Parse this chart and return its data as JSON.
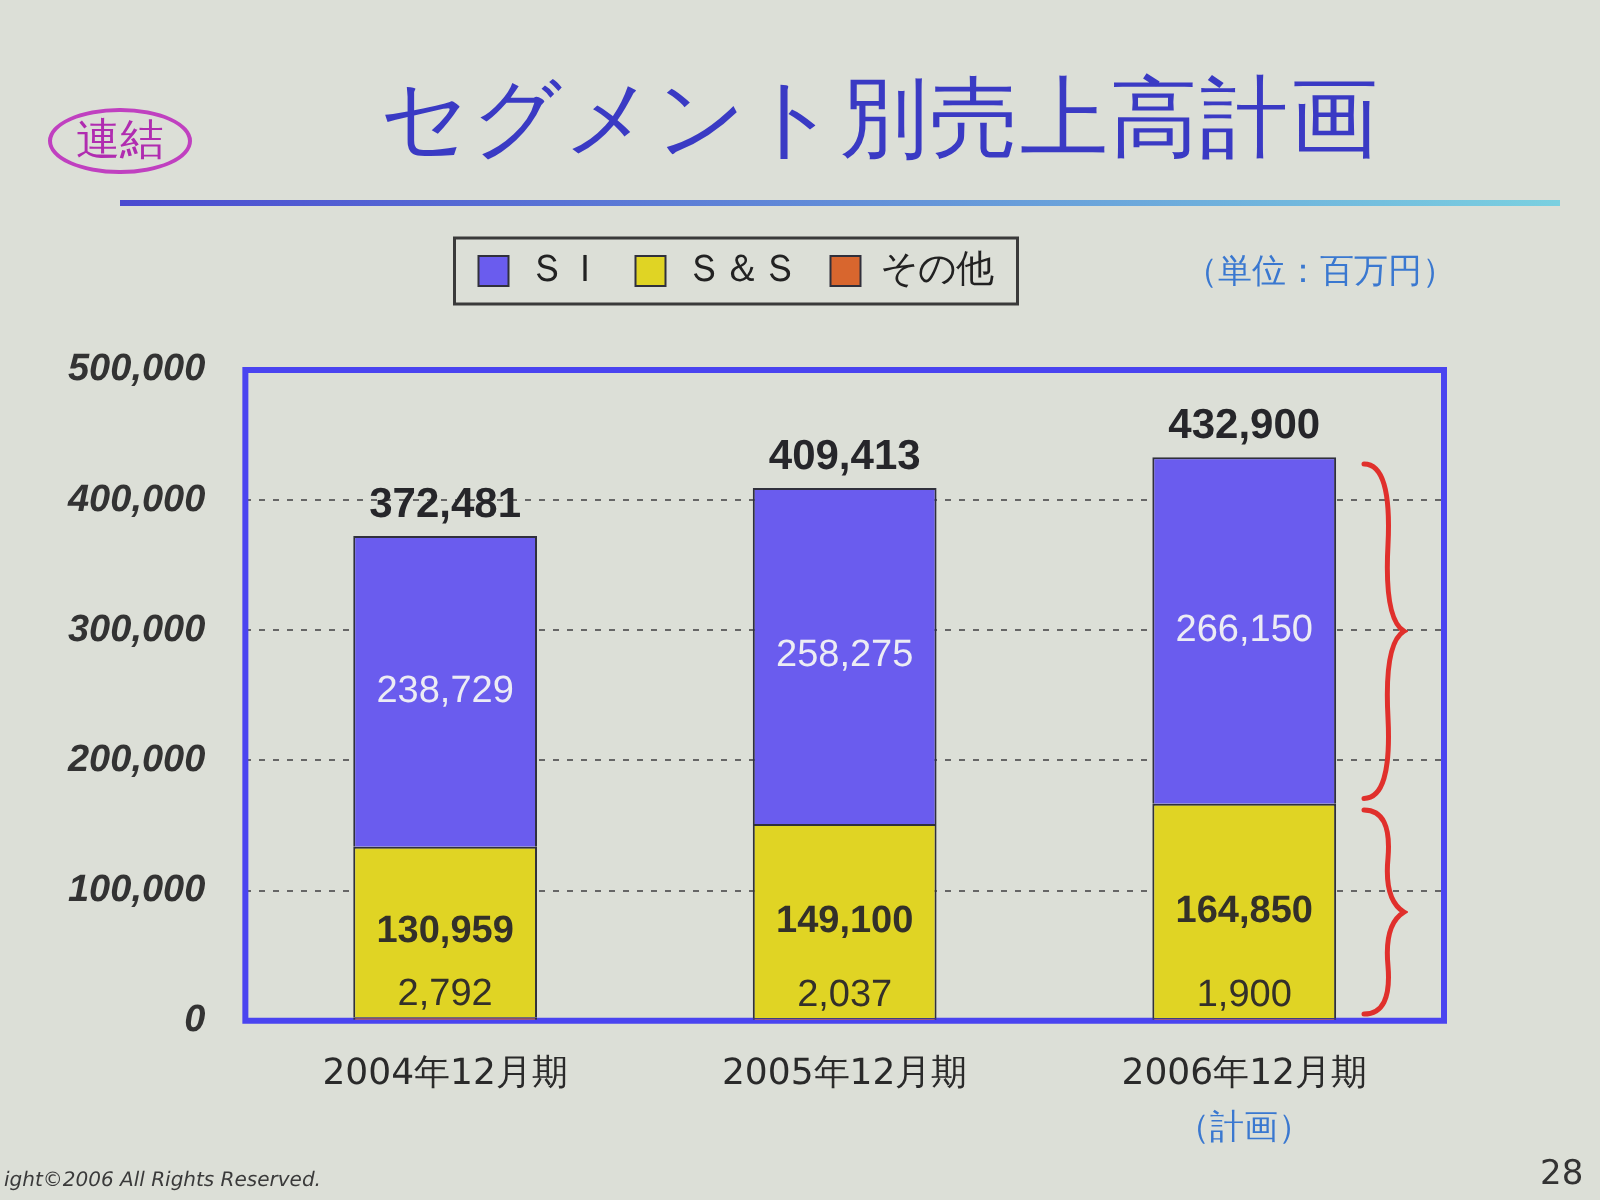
{
  "chart_data": {
    "type": "bar",
    "title": "セグメント別売上高計画",
    "categories": [
      "2004年12月期",
      "2005年12月期",
      "2006年12月期"
    ],
    "stacked": true,
    "series": [
      {
        "name": "その他",
        "color": "#d8662e",
        "values": [
          2792,
          2037,
          1900
        ],
        "value_labels": [
          "2,792",
          "2,037",
          "1,900"
        ]
      },
      {
        "name": "Ｓ＆Ｓ",
        "color": "#e0d424",
        "values": [
          130959,
          149100,
          164850
        ],
        "value_labels": [
          "130,959",
          "149,100",
          "164,850"
        ]
      },
      {
        "name": "ＳＩ",
        "color": "#6a5cee",
        "values": [
          238729,
          258275,
          266150
        ],
        "value_labels": [
          "238,729",
          "258,275",
          "266,150"
        ]
      }
    ],
    "ylim": [
      0,
      500000
    ],
    "yticks": [
      0,
      {
        "value": 100000,
        "label": "100,000"
      },
      {
        "value": 200000,
        "label": "200,000"
      },
      {
        "value": 300000,
        "label": "300,000"
      },
      {
        "value": 400000,
        "label": "400,000"
      },
      {
        "value": 500000,
        "label": "500,000"
      }
    ],
    "grid": "y",
    "legend": "top",
    "totals": [
      "372,481",
      "409,413",
      "432,900"
    ],
    "annotations": [
      "連結",
      "（単位：百万円）",
      "（計画）",
      "ight©2006 All Rights Reserved.",
      "28"
    ]
  }
}
